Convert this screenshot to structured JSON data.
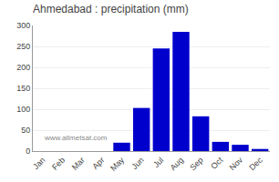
{
  "chart_data": {
    "type": "bar",
    "title": "Ahmedabad : precipitation (mm)",
    "categories": [
      "Jan",
      "Feb",
      "Mar",
      "Apr",
      "May",
      "Jun",
      "Jul",
      "Aug",
      "Sep",
      "Oct",
      "Nov",
      "Dec"
    ],
    "values": [
      0,
      0,
      0,
      0,
      20,
      103,
      245,
      285,
      83,
      22,
      15,
      5
    ],
    "color": "#0000cc",
    "ylim": [
      0,
      300
    ],
    "yticks": [
      0,
      50,
      100,
      150,
      200,
      250,
      300
    ],
    "grid": true,
    "annotations": [
      "www.allmetsat.com"
    ]
  }
}
